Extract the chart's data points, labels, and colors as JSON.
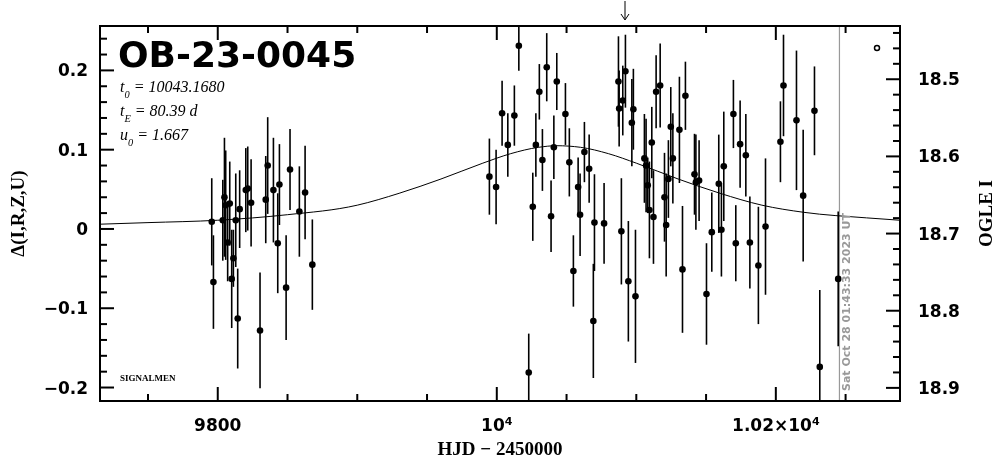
{
  "chart_data": {
    "type": "scatter",
    "title": "OB-23-0045",
    "xlabel": "HJD − 2450000",
    "ylabel": "Δ(I,R,Z,U)",
    "y2label": "OGLE I",
    "annotations": [
      "t$_{0}$ = 10043.1680",
      "t$_{E}$ = 80.39 d",
      "u$_{0}$ = 1.667",
      "SIGNALMEN",
      "Sat Oct 28 01:43:33 2023 UT"
    ],
    "xlim": [
      9715.6,
      10289
    ],
    "xticks": [
      {
        "value": 9750,
        "label": null
      },
      {
        "value": 9800,
        "label": "9800"
      },
      {
        "value": 9850,
        "label": null
      },
      {
        "value": 9900,
        "label": null
      },
      {
        "value": 9950,
        "label": null
      },
      {
        "value": 10000,
        "label": "10$^{4}$"
      },
      {
        "value": 10050,
        "label": null
      },
      {
        "value": 10100,
        "label": null
      },
      {
        "value": 10150,
        "label": null
      },
      {
        "value": 10200,
        "label": "1.02×10$^{4}$"
      },
      {
        "value": 10250,
        "label": null
      }
    ],
    "ylim": [
      -0.217,
      0.256
    ],
    "yticks": [
      {
        "value": -0.2,
        "label": "−0.2"
      },
      {
        "value": -0.18,
        "label": null
      },
      {
        "value": -0.16,
        "label": null
      },
      {
        "value": -0.14,
        "label": null
      },
      {
        "value": -0.12,
        "label": null
      },
      {
        "value": -0.1,
        "label": "−0.1"
      },
      {
        "value": -0.08,
        "label": null
      },
      {
        "value": -0.06,
        "label": null
      },
      {
        "value": -0.04,
        "label": null
      },
      {
        "value": -0.02,
        "label": null
      },
      0,
      {
        "value": 0.02,
        "label": null
      },
      {
        "value": 0.04,
        "label": null
      },
      {
        "value": 0.06,
        "label": null
      },
      {
        "value": 0.08,
        "label": null
      },
      0.1,
      {
        "value": 0.12,
        "label": null
      },
      {
        "value": 0.14,
        "label": null
      },
      {
        "value": 0.16,
        "label": null
      },
      {
        "value": 0.18,
        "label": null
      },
      0.2,
      {
        "value": 0.22,
        "label": null
      },
      {
        "value": 0.24,
        "label": null
      }
    ],
    "y2lim": [
      18.917,
      18.431
    ],
    "y2ticks": [
      {
        "value": 18.44,
        "label": null
      },
      {
        "value": 18.46,
        "label": null
      },
      {
        "value": 18.48,
        "label": null
      },
      18.5,
      {
        "value": 18.52,
        "label": null
      },
      {
        "value": 18.54,
        "label": null
      },
      {
        "value": 18.56,
        "label": null
      },
      {
        "value": 18.58,
        "label": null
      },
      18.6,
      {
        "value": 18.62,
        "label": null
      },
      {
        "value": 18.64,
        "label": null
      },
      {
        "value": 18.66,
        "label": null
      },
      {
        "value": 18.68,
        "label": null
      },
      18.7,
      {
        "value": 18.72,
        "label": null
      },
      {
        "value": 18.74,
        "label": null
      },
      {
        "value": 18.76,
        "label": null
      },
      {
        "value": 18.78,
        "label": null
      },
      18.8,
      {
        "value": 18.82,
        "label": null
      },
      {
        "value": 18.84,
        "label": null
      },
      {
        "value": 18.86,
        "label": null
      },
      {
        "value": 18.88,
        "label": null
      },
      18.9
    ],
    "ref_lines": [
      {
        "axis": "x",
        "value": 10245.6,
        "color": "#999999"
      }
    ],
    "series": [
      {
        "color": "#000000",
        "marker": "circle",
        "x": [
          9795.7,
          9796.9,
          9803.6,
          9804.8,
          9805.7,
          9807.1,
          9808.6,
          9810.0,
          9811.2,
          9812.9,
          9814.3,
          9815.7,
          9820.1,
          9821.5,
          9823.9,
          9830.3,
          9834.4,
          9835.8,
          9839.9,
          9843.0,
          9844.2,
          9849.0,
          9851.8,
          9858.5,
          9862.6,
          9867.8,
          9994.7,
          9999.5,
          10003.8,
          10007.9,
          10012.6,
          10015.8,
          10022.9,
          10025.8,
          10028.0,
          10030.5,
          10032.7,
          10035.8,
          10038.9,
          10040.9,
          10043.0,
          10049.2,
          10052.0,
          10054.9,
          10058.3,
          10059.7,
          10062.8,
          10066.2,
          10069.2,
          10070.0,
          10076.9,
          10087.2,
          10087.7,
          10089.3,
          10090.3,
          10092.2,
          10094.3,
          10096.8,
          10097.9,
          10099.4,
          10105.8,
          10107.0,
          10108.2,
          10109.4,
          10111.1,
          10112.3,
          10114.2,
          10117.1,
          10120.2,
          10121.4,
          10123.0,
          10124.7,
          10126.2,
          10130.9,
          10133.1,
          10135.2,
          10141.7,
          10142.7,
          10145.0,
          10150.3,
          10154.1,
          10159.1,
          10161.0,
          10162.7,
          10169.6,
          10171.3,
          10174.4,
          10178.5,
          10181.4,
          10187.5,
          10192.6,
          10203.3,
          10205.5,
          10214.8,
          10219.6,
          10227.7,
          10231.5,
          10244.7
        ],
        "values": [
          0.009,
          -0.067,
          0.011,
          0.04,
          0.03,
          -0.017,
          0.032,
          -0.063,
          -0.037,
          0.011,
          -0.113,
          0.025,
          0.049,
          0.051,
          0.033,
          -0.128,
          0.037,
          0.08,
          0.049,
          -0.018,
          0.056,
          -0.074,
          0.075,
          0.022,
          0.046,
          -0.045,
          0.066,
          0.053,
          0.146,
          0.106,
          0.143,
          0.231,
          -0.181,
          0.028,
          0.106,
          0.173,
          0.087,
          0.204,
          0.016,
          0.103,
          0.186,
          0.145,
          0.084,
          -0.053,
          0.053,
          0.018,
          0.097,
          0.076,
          -0.116,
          0.008,
          0.007,
          0.186,
          0.152,
          -0.003,
          0.162,
          0.199,
          -0.066,
          0.134,
          0.151,
          -0.085,
          0.089,
          0.08,
          0.055,
          0.024,
          0.109,
          0.015,
          0.173,
          0.181,
          0.04,
          0.005,
          0.063,
          0.129,
          0.089,
          0.125,
          -0.051,
          0.168,
          0.069,
          0.059,
          0.061,
          -0.082,
          -0.004,
          0.057,
          -0.001,
          0.079,
          0.145,
          -0.018,
          0.107,
          0.093,
          -0.017,
          -0.046,
          0.003,
          0.11,
          0.181,
          0.137,
          0.042,
          0.149,
          -0.174,
          -0.063
        ],
        "errors": [
          0.055,
          0.059,
          0.051,
          0.075,
          0.069,
          0.049,
          0.053,
          0.062,
          0.036,
          0.059,
          0.063,
          0.049,
          0.053,
          0.053,
          0.055,
          0.073,
          0.055,
          0.061,
          0.066,
          0.063,
          0.051,
          0.066,
          0.051,
          0.057,
          0.059,
          0.057,
          0.048,
          0.047,
          0.041,
          0.04,
          0.038,
          [
            0.1995,
            0.255
          ],
          [
            -0.216,
            -0.132
          ],
          0.043,
          0.04,
          0.035,
          0.039,
          0.043,
          0.045,
          0.04,
          0.036,
          0.039,
          0.043,
          0.045,
          0.037,
          0.052,
          0.038,
          0.043,
          0.072,
          0.061,
          0.051,
          0.057,
          0.048,
          0.067,
          0.044,
          0.046,
          0.076,
          0.055,
          0.051,
          0.084,
          0.056,
          0.059,
          0.035,
          0.061,
          0.045,
          0.059,
          0.046,
          0.053,
          0.056,
          0.065,
          0.049,
          0.05,
          0.057,
          0.067,
          0.08,
          0.043,
          0.051,
          0.06,
          0.051,
          0.064,
          0.05,
          0.062,
          0.059,
          0.069,
          0.043,
          0.048,
          0.055,
          0.052,
          0.058,
          0.074,
          0.086,
          0.051,
          0.064,
          0.088,
          0.083,
          0.056,
          [
            -0.216,
            -0.077
          ],
          0.085
        ]
      },
      {
        "type": "line",
        "color": "#000000",
        "x": [
          9715.6,
          9750,
          9800,
          9850,
          9900,
          9930,
          9960,
          9990,
          10010,
          10030,
          10043,
          10060,
          10080,
          10100,
          10130,
          10160,
          10190,
          10220,
          10265,
          10289
        ],
        "values": [
          0.006,
          0.008,
          0.011,
          0.018,
          0.03,
          0.045,
          0.063,
          0.083,
          0.095,
          0.103,
          0.105,
          0.103,
          0.095,
          0.083,
          0.063,
          0.045,
          0.03,
          0.021,
          0.014,
          0.011
        ]
      }
    ]
  }
}
